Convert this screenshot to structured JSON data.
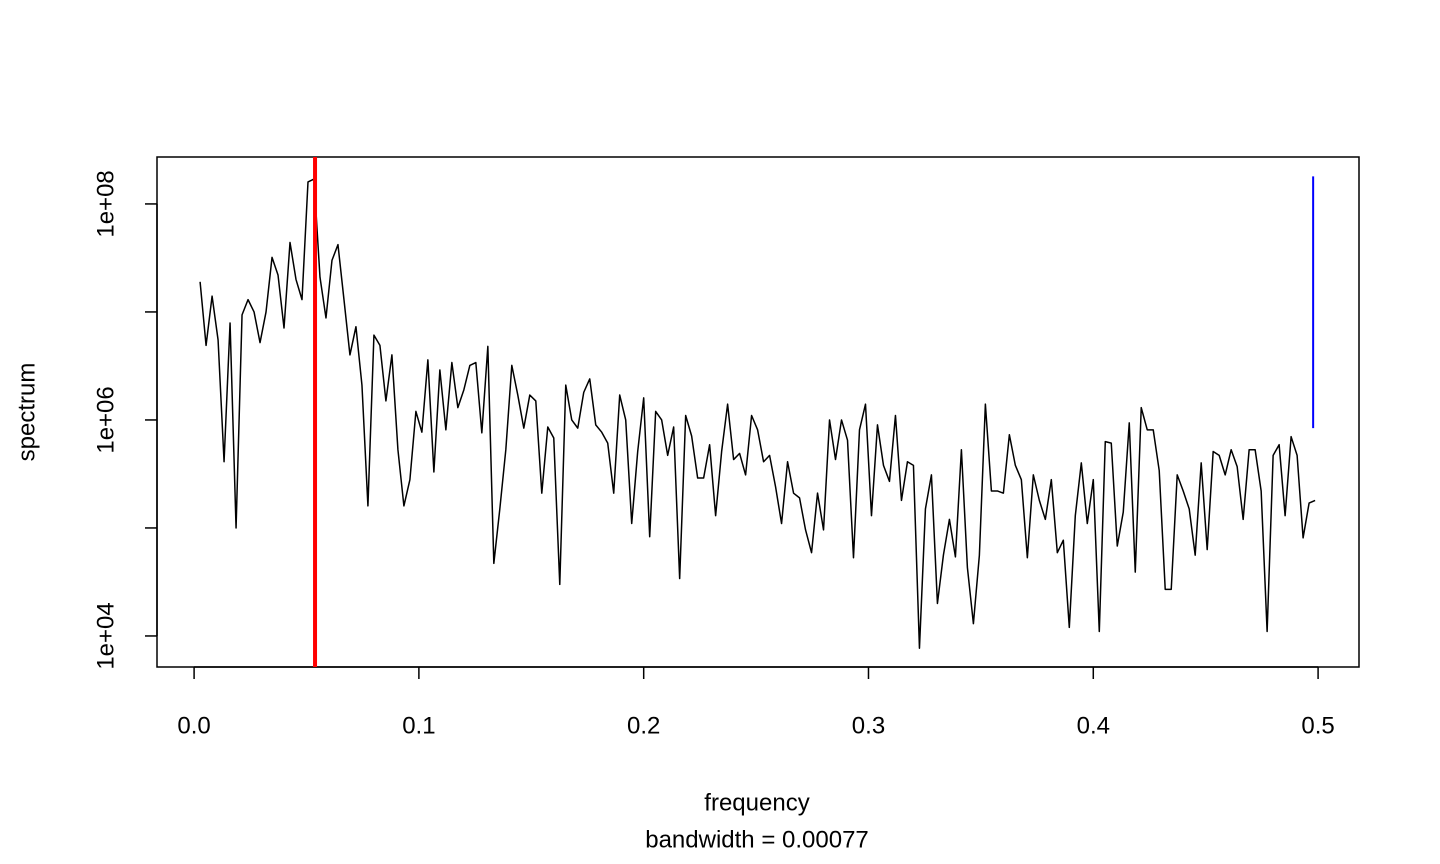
{
  "chart_data": {
    "type": "line",
    "x_label": "frequency",
    "subtitle": "bandwidth = 0.00077",
    "y_label": "spectrum",
    "log_y": true,
    "color": "#000000",
    "xlim": [
      -0.0165,
      0.5182
    ],
    "ylim": [
      5160.0,
      272000000.0
    ],
    "xticks": [
      {
        "value": 0,
        "label": "0.0"
      },
      0.1,
      0.2,
      0.3,
      0.4,
      0.5
    ],
    "yticks": [
      {
        "value": 10000,
        "label": "1e+04"
      },
      {
        "value": 1000000,
        "label": "1e+06"
      },
      {
        "value": 100000000,
        "label": "1e+08"
      }
    ],
    "yminor_ticks": [
      100000,
      10000000
    ],
    "vlines": [
      {
        "x": 0.0538,
        "color": "#ff0000"
      }
    ],
    "ci_bar": {
      "x": 0.4978,
      "lower": 840000.0,
      "upper": 180000000.0,
      "color": "#0000ff"
    },
    "x": [
      0.00267,
      0.00533,
      0.008,
      0.01067,
      0.01333,
      0.016,
      0.01867,
      0.02133,
      0.024,
      0.02667,
      0.02933,
      0.032,
      0.03467,
      0.03733,
      0.04,
      0.04267,
      0.04533,
      0.048,
      0.05067,
      0.05333,
      0.056,
      0.05867,
      0.06133,
      0.064,
      0.06667,
      0.06933,
      0.072,
      0.07467,
      0.07733,
      0.08,
      0.08267,
      0.08533,
      0.088,
      0.09067,
      0.09333,
      0.096,
      0.09867,
      0.10133,
      0.104,
      0.10667,
      0.10933,
      0.112,
      0.11467,
      0.11733,
      0.12,
      0.12267,
      0.12533,
      0.128,
      0.13067,
      0.13333,
      0.136,
      0.13867,
      0.14133,
      0.144,
      0.14667,
      0.14933,
      0.152,
      0.15467,
      0.15733,
      0.16,
      0.16267,
      0.16533,
      0.168,
      0.17067,
      0.17333,
      0.176,
      0.17867,
      0.18133,
      0.184,
      0.18667,
      0.18933,
      0.192,
      0.19467,
      0.19733,
      0.2,
      0.20267,
      0.20533,
      0.208,
      0.21067,
      0.21333,
      0.216,
      0.21867,
      0.22133,
      0.224,
      0.22667,
      0.22933,
      0.232,
      0.23467,
      0.23733,
      0.24,
      0.24267,
      0.24533,
      0.248,
      0.25067,
      0.25333,
      0.256,
      0.25867,
      0.26133,
      0.264,
      0.26667,
      0.26933,
      0.272,
      0.27467,
      0.27733,
      0.28,
      0.28267,
      0.28533,
      0.288,
      0.29067,
      0.29333,
      0.296,
      0.29867,
      0.30133,
      0.304,
      0.30667,
      0.30933,
      0.312,
      0.31467,
      0.31733,
      0.32,
      0.32267,
      0.32533,
      0.328,
      0.33067,
      0.33333,
      0.336,
      0.33867,
      0.34133,
      0.344,
      0.34667,
      0.34933,
      0.352,
      0.35467,
      0.35733,
      0.36,
      0.36267,
      0.36533,
      0.368,
      0.37067,
      0.37333,
      0.376,
      0.37867,
      0.38133,
      0.384,
      0.38667,
      0.38933,
      0.392,
      0.39467,
      0.39733,
      0.4,
      0.40267,
      0.40533,
      0.408,
      0.41067,
      0.41333,
      0.416,
      0.41867,
      0.42133,
      0.424,
      0.42667,
      0.42933,
      0.432,
      0.43467,
      0.43733,
      0.44,
      0.44267,
      0.44533,
      0.448,
      0.45067,
      0.45333,
      0.456,
      0.45867,
      0.46133,
      0.464,
      0.46667,
      0.46933,
      0.472,
      0.47467,
      0.47733,
      0.48,
      0.48267,
      0.48533,
      0.488,
      0.49067,
      0.49333,
      0.496,
      0.49867
    ],
    "values": [
      19000000.0,
      4900000.0,
      14000000.0,
      5500000.0,
      410000.0,
      7900000.0,
      100000.0,
      9400000.0,
      13000000.0,
      10000000.0,
      5200000.0,
      10000000.0,
      32000000.0,
      22000000.0,
      7100000.0,
      44000000.0,
      20000000.0,
      13000000.0,
      160000000.0,
      170000000.0,
      21000000.0,
      8800000.0,
      30000000.0,
      42000000.0,
      13000000.0,
      4000000.0,
      7300000.0,
      2100000.0,
      160000.0,
      6100000.0,
      4900000.0,
      1500000.0,
      4000000.0,
      530000.0,
      160000.0,
      280000.0,
      1200000.0,
      770000.0,
      3600000.0,
      330000.0,
      2900000.0,
      810000.0,
      3400000.0,
      1300000.0,
      1900000.0,
      3200000.0,
      3400000.0,
      760000.0,
      4800000.0,
      47000.0,
      150000.0,
      530000.0,
      3200000.0,
      1700000.0,
      840000.0,
      1700000.0,
      1500000.0,
      210000.0,
      860000.0,
      680000.0,
      30000.0,
      2100000.0,
      1000000.0,
      840000.0,
      1800000.0,
      2400000.0,
      900000.0,
      770000.0,
      610000.0,
      210000.0,
      1700000.0,
      1000000.0,
      110000.0,
      510000.0,
      1600000.0,
      83000.0,
      1200000.0,
      1000000.0,
      470000.0,
      860000.0,
      34000.0,
      1100000.0,
      710000.0,
      290000.0,
      290000.0,
      590000.0,
      130000.0,
      510000.0,
      1400000.0,
      430000.0,
      490000.0,
      310000.0,
      1100000.0,
      810000.0,
      410000.0,
      470000.0,
      240000.0,
      110000.0,
      410000.0,
      210000.0,
      190000.0,
      96000.0,
      59000.0,
      210000.0,
      96000.0,
      1000000.0,
      430000.0,
      1000000.0,
      650000.0,
      53000.0,
      810000.0,
      1400000.0,
      130000.0,
      900000.0,
      380000.0,
      270000.0,
      1100000.0,
      180000.0,
      410000.0,
      380000.0,
      7700.0,
      150000.0,
      310000.0,
      20000.0,
      56000.0,
      120000.0,
      54000.0,
      530000.0,
      43000.0,
      13000.0,
      56000.0,
      1400000.0,
      220000.0,
      220000.0,
      210000.0,
      730000.0,
      380000.0,
      280000.0,
      53000.0,
      310000.0,
      180000.0,
      120000.0,
      280000.0,
      59000.0,
      77000.0,
      12000.0,
      130000.0,
      400000.0,
      110000.0,
      280000.0,
      11000.0,
      630000.0,
      610000.0,
      68000.0,
      140000.0,
      940000.0,
      39000.0,
      1300000.0,
      810000.0,
      810000.0,
      340000.0,
      27000.0,
      27000.0,
      310000.0,
      220000.0,
      150000.0,
      56000.0,
      400000.0,
      63000.0,
      510000.0,
      470000.0,
      310000.0,
      530000.0,
      370000.0,
      120000.0,
      530000.0,
      530000.0,
      220000.0,
      11000.0,
      470000.0,
      590000.0,
      130000.0,
      700000.0,
      470000.0,
      81000.0,
      170000.0,
      180000.0
    ]
  }
}
